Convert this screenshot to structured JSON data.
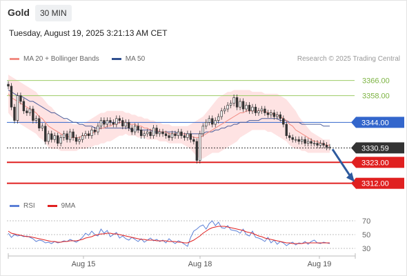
{
  "header": {
    "title": "Gold",
    "timeframe": "30 MIN"
  },
  "timestamp": "Tuesday, August 19, 2025 3:21:13 AM CET",
  "legend": {
    "items": [
      {
        "label": "MA 20 + Bollinger Bands",
        "color": "#f28b82"
      },
      {
        "label": "MA 50",
        "color": "#2f4f8f"
      }
    ],
    "credit": "Research © 2025 Trading Central"
  },
  "rsi_legend": {
    "items": [
      {
        "label": "RSI",
        "color": "#5b7fd6"
      },
      {
        "label": "9MA",
        "color": "#e02020"
      }
    ]
  },
  "chart_data": {
    "type": "candlestick",
    "ylim": [
      3305,
      3372
    ],
    "x_ticks": [
      "Aug 15",
      "Aug 18",
      "Aug 19"
    ],
    "levels": [
      {
        "value": 3366.0,
        "label": "3366.00",
        "kind": "resistance",
        "color": "#9ccc65"
      },
      {
        "value": 3358.0,
        "label": "3358.00",
        "kind": "resistance",
        "color": "#9ccc65"
      },
      {
        "value": 3344.0,
        "label": "3344.00",
        "kind": "pivot",
        "color": "#3366cc"
      },
      {
        "value": 3330.59,
        "label": "3330.59",
        "kind": "last",
        "color": "#333333"
      },
      {
        "value": 3323.0,
        "label": "3323.00",
        "kind": "support",
        "color": "#e02020"
      },
      {
        "value": 3312.0,
        "label": "3312.00",
        "kind": "support",
        "color": "#e02020"
      }
    ],
    "close": [
      3363,
      3352,
      3345,
      3358,
      3355,
      3350,
      3349,
      3351,
      3345,
      3346,
      3341,
      3342,
      3334,
      3338,
      3335,
      3337,
      3333,
      3336,
      3338,
      3335,
      3339,
      3336,
      3334,
      3335,
      3337,
      3338,
      3337,
      3340,
      3339,
      3342,
      3345,
      3343,
      3345,
      3344,
      3343,
      3346,
      3345,
      3342,
      3344,
      3341,
      3339,
      3342,
      3340,
      3337,
      3338,
      3339,
      3337,
      3341,
      3338,
      3339,
      3338,
      3337,
      3336,
      3338,
      3337,
      3339,
      3337,
      3336,
      3338,
      3335,
      3334,
      3324,
      3338,
      3342,
      3344,
      3346,
      3343,
      3345,
      3347,
      3350,
      3351,
      3353,
      3354,
      3357,
      3352,
      3355,
      3351,
      3353,
      3350,
      3352,
      3349,
      3350,
      3351,
      3349,
      3348,
      3349,
      3347,
      3348,
      3346,
      3343,
      3337,
      3336,
      3335,
      3335,
      3334,
      3335,
      3333,
      3334,
      3333,
      3333,
      3332,
      3333,
      3332,
      3331,
      3331
    ],
    "ma20": [
      3359,
      3357,
      3356,
      3355,
      3354,
      3353,
      3352,
      3351,
      3350,
      3349,
      3347,
      3346,
      3344,
      3342,
      3341,
      3340,
      3339,
      3338,
      3337,
      3337,
      3336,
      3336,
      3336,
      3336,
      3337,
      3337,
      3338,
      3338,
      3339,
      3340,
      3341,
      3341,
      3342,
      3342,
      3343,
      3343,
      3344,
      3344,
      3344,
      3343,
      3343,
      3343,
      3342,
      3342,
      3341,
      3341,
      3340,
      3340,
      3340,
      3339,
      3339,
      3339,
      3338,
      3338,
      3338,
      3338,
      3338,
      3338,
      3337,
      3337,
      3336,
      3336,
      3336,
      3337,
      3338,
      3339,
      3340,
      3341,
      3342,
      3343,
      3344,
      3345,
      3346,
      3347,
      3348,
      3349,
      3349,
      3350,
      3350,
      3350,
      3350,
      3350,
      3350,
      3350,
      3349,
      3349,
      3348,
      3348,
      3347,
      3346,
      3345,
      3343,
      3342,
      3340,
      3339,
      3338,
      3337,
      3336,
      3335,
      3334,
      3334,
      3333,
      3333,
      3332,
      3332
    ],
    "bb_upper": [
      3369,
      3368,
      3367,
      3366,
      3365,
      3364,
      3363,
      3362,
      3361,
      3360,
      3358,
      3357,
      3355,
      3353,
      3352,
      3350,
      3348,
      3347,
      3346,
      3345,
      3344,
      3343,
      3343,
      3343,
      3343,
      3344,
      3345,
      3346,
      3347,
      3348,
      3349,
      3349,
      3350,
      3350,
      3350,
      3350,
      3350,
      3350,
      3349,
      3349,
      3348,
      3348,
      3347,
      3347,
      3346,
      3346,
      3345,
      3345,
      3344,
      3344,
      3343,
      3343,
      3343,
      3342,
      3342,
      3342,
      3342,
      3342,
      3342,
      3343,
      3344,
      3345,
      3346,
      3347,
      3349,
      3351,
      3353,
      3355,
      3357,
      3358,
      3359,
      3360,
      3360,
      3361,
      3361,
      3361,
      3361,
      3361,
      3361,
      3360,
      3360,
      3360,
      3360,
      3359,
      3359,
      3359,
      3359,
      3359,
      3358,
      3357,
      3356,
      3354,
      3352,
      3350,
      3347,
      3345,
      3343,
      3341,
      3339,
      3338,
      3337,
      3336,
      3335,
      3335,
      3335
    ],
    "bb_lower": [
      3349,
      3347,
      3345,
      3344,
      3343,
      3342,
      3341,
      3340,
      3339,
      3338,
      3336,
      3335,
      3333,
      3331,
      3330,
      3330,
      3330,
      3329,
      3329,
      3329,
      3329,
      3329,
      3329,
      3330,
      3330,
      3330,
      3331,
      3331,
      3332,
      3332,
      3333,
      3333,
      3334,
      3334,
      3335,
      3336,
      3337,
      3337,
      3338,
      3337,
      3337,
      3337,
      3336,
      3336,
      3336,
      3335,
      3335,
      3335,
      3335,
      3334,
      3334,
      3334,
      3333,
      3333,
      3333,
      3333,
      3333,
      3332,
      3331,
      3330,
      3328,
      3326,
      3325,
      3325,
      3326,
      3327,
      3328,
      3328,
      3328,
      3329,
      3330,
      3331,
      3332,
      3333,
      3334,
      3336,
      3337,
      3338,
      3339,
      3340,
      3340,
      3340,
      3340,
      3340,
      3339,
      3339,
      3338,
      3337,
      3336,
      3335,
      3334,
      3332,
      3331,
      3330,
      3330,
      3329,
      3329,
      3328,
      3328,
      3328,
      3328,
      3328,
      3328,
      3328,
      3328
    ],
    "ma50": [
      3361,
      3360,
      3359,
      3358,
      3358,
      3357,
      3356,
      3355,
      3355,
      3354,
      3353,
      3352,
      3351,
      3350,
      3349,
      3349,
      3348,
      3347,
      3346,
      3346,
      3345,
      3344,
      3344,
      3343,
      3343,
      3342,
      3342,
      3342,
      3341,
      3341,
      3341,
      3341,
      3341,
      3341,
      3341,
      3341,
      3341,
      3341,
      3341,
      3341,
      3340,
      3340,
      3340,
      3340,
      3340,
      3340,
      3340,
      3339,
      3339,
      3339,
      3339,
      3339,
      3339,
      3339,
      3339,
      3338,
      3338,
      3338,
      3338,
      3338,
      3338,
      3338,
      3338,
      3338,
      3339,
      3339,
      3339,
      3340,
      3340,
      3341,
      3341,
      3342,
      3342,
      3343,
      3343,
      3344,
      3344,
      3344,
      3345,
      3345,
      3345,
      3345,
      3346,
      3346,
      3346,
      3346,
      3346,
      3346,
      3345,
      3345,
      3345,
      3344,
      3344,
      3344,
      3344,
      3343,
      3343,
      3343,
      3343,
      3343,
      3343,
      3343,
      3342,
      3342,
      3342
    ],
    "forecast": {
      "from": 3330.59,
      "to": 3312.0
    },
    "rsi": {
      "ylim": [
        25,
        75
      ],
      "ticks": [
        70,
        50,
        30
      ],
      "rsi": [
        52,
        46,
        50,
        48,
        49,
        47,
        48,
        46,
        44,
        40,
        42,
        41,
        38,
        39,
        37,
        40,
        38,
        39,
        41,
        40,
        43,
        41,
        39,
        42,
        46,
        52,
        49,
        55,
        50,
        48,
        58,
        52,
        56,
        47,
        50,
        53,
        45,
        48,
        44,
        42,
        46,
        43,
        40,
        44,
        39,
        42,
        45,
        41,
        43,
        40,
        42,
        38,
        44,
        40,
        37,
        41,
        39,
        36,
        33,
        46,
        55,
        58,
        62,
        64,
        58,
        66,
        70,
        63,
        68,
        60,
        59,
        63,
        57,
        56,
        55,
        52,
        58,
        50,
        48,
        55,
        46,
        45,
        43,
        40,
        46,
        38,
        42,
        36,
        40,
        38,
        34,
        37,
        39,
        35,
        38,
        37,
        40,
        36,
        40,
        42,
        38,
        37,
        39,
        38,
        37
      ],
      "ma9": [
        55,
        52,
        51,
        50,
        49,
        48,
        47,
        47,
        46,
        45,
        44,
        43,
        42,
        41,
        40,
        40,
        39,
        39,
        40,
        40,
        41,
        41,
        41,
        42,
        43,
        45,
        46,
        47,
        49,
        50,
        51,
        51,
        52,
        52,
        51,
        51,
        50,
        49,
        48,
        47,
        46,
        45,
        44,
        43,
        43,
        42,
        42,
        42,
        41,
        41,
        41,
        41,
        40,
        40,
        40,
        39,
        39,
        38,
        38,
        40,
        42,
        45,
        48,
        52,
        55,
        58,
        60,
        61,
        62,
        62,
        62,
        61,
        60,
        59,
        58,
        57,
        56,
        54,
        53,
        52,
        50,
        48,
        47,
        45,
        44,
        43,
        42,
        41,
        40,
        39,
        38,
        38,
        37,
        37,
        37,
        37,
        38,
        38,
        38,
        38,
        38,
        38,
        38,
        38,
        38
      ]
    }
  }
}
